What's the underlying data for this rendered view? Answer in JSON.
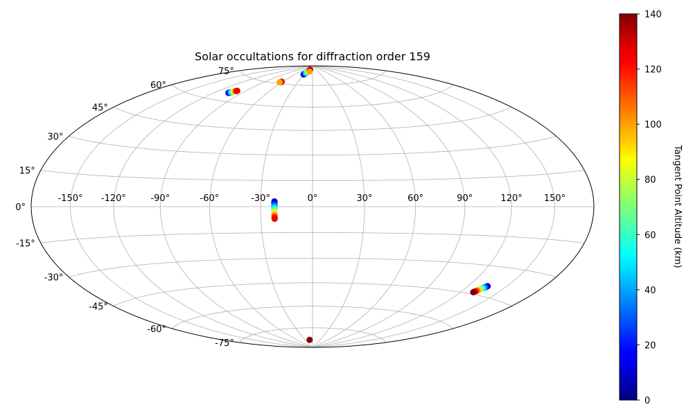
{
  "chart_data": {
    "type": "scatter",
    "projection": "hammer",
    "title": "Solar occultations for diffraction order 159",
    "grid": true,
    "lon_ticks": [
      -150,
      -120,
      -90,
      -60,
      -30,
      0,
      30,
      60,
      90,
      120,
      150
    ],
    "lat_ticks": [
      75,
      60,
      45,
      30,
      15,
      0,
      -15,
      -30,
      -45,
      -60,
      -75
    ],
    "lon_tick_labels": [
      "-150°",
      "-120°",
      "-90°",
      "-60°",
      "-30°",
      "0°",
      "30°",
      "60°",
      "90°",
      "120°",
      "150°"
    ],
    "lat_tick_labels": [
      "75°",
      "60°",
      "45°",
      "30°",
      "15°",
      "0°",
      "-15°",
      "-30°",
      "-45°",
      "-60°",
      "-75°"
    ],
    "colorbar": {
      "label": "Tangent Point Altitude (km)",
      "min": 0,
      "max": 140,
      "ticks": [
        0,
        20,
        40,
        60,
        80,
        100,
        120,
        140
      ],
      "tick_labels": [
        "0",
        "20",
        "40",
        "60",
        "80",
        "100",
        "120",
        "140"
      ],
      "colormap": "jet"
    },
    "tracks": [
      {
        "lon_start": -22,
        "lat_start": 3,
        "lon_end": -22,
        "lat_end": -7,
        "alt_start": 0,
        "alt_end": 125
      },
      {
        "lon_start": -32,
        "lat_start": 83,
        "lon_end": -18,
        "lat_end": 87,
        "alt_start": 0,
        "alt_end": 125
      },
      {
        "lon_start": -105,
        "lat_start": 65,
        "lon_end": -100,
        "lat_end": 67,
        "alt_start": 0,
        "alt_end": 125
      },
      {
        "lon_start": -63,
        "lat_start": 76,
        "lon_end": -62,
        "lat_end": 76.5,
        "alt_start": 0,
        "alt_end": 125
      },
      {
        "lon_start": 135,
        "lat_start": -40,
        "lon_end": 130,
        "lat_end": -44,
        "alt_start": 0,
        "alt_end": 140
      }
    ],
    "points": [
      {
        "lon": -64,
        "lat": 76,
        "alt": 100
      },
      {
        "lon": -18,
        "lat": 86,
        "alt": 0
      },
      {
        "lon": -16,
        "lat": 85.5,
        "alt": 100
      },
      {
        "lon": -12,
        "lat": -84,
        "alt": 140
      }
    ]
  }
}
